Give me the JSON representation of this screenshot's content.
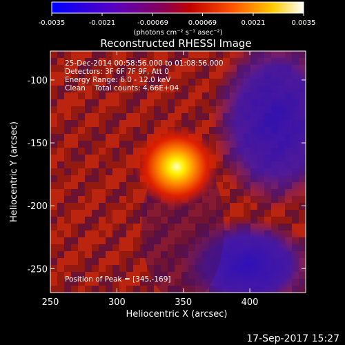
{
  "chart_data": {
    "type": "heatmap",
    "title": "Reconstructed RHESSI Image",
    "xlabel": "Heliocentric X (arcsec)",
    "ylabel": "Heliocentric Y (arcsec)",
    "xlim": [
      250,
      442
    ],
    "ylim": [
      -269,
      -77
    ],
    "x_ticks": [
      250,
      300,
      350,
      400
    ],
    "y_ticks": [
      -250,
      -200,
      -150,
      -100
    ],
    "info_lines": [
      "25-Dec-2014 00:58:56.000 to 01:08:56.000",
      "Detectors: 3F 6F 7F 9F, Att 0",
      "Energy Range: 6.0 - 12.0 keV",
      "Clean    Total counts: 4.66E+04"
    ],
    "peak_label": "Position of Peak = [345,-169]",
    "peak": [
      345,
      -169
    ],
    "colorbar": {
      "range": [
        -0.0035,
        0.0035
      ],
      "ticks": [
        "-0.0035",
        "-0.0021",
        "-0.00069",
        "0.00069",
        "0.0021",
        "0.0035"
      ],
      "unit_label": "(photons cm⁻² s⁻¹ asec⁻²)"
    }
  },
  "timestamp": "17-Sep-2017 15:27"
}
